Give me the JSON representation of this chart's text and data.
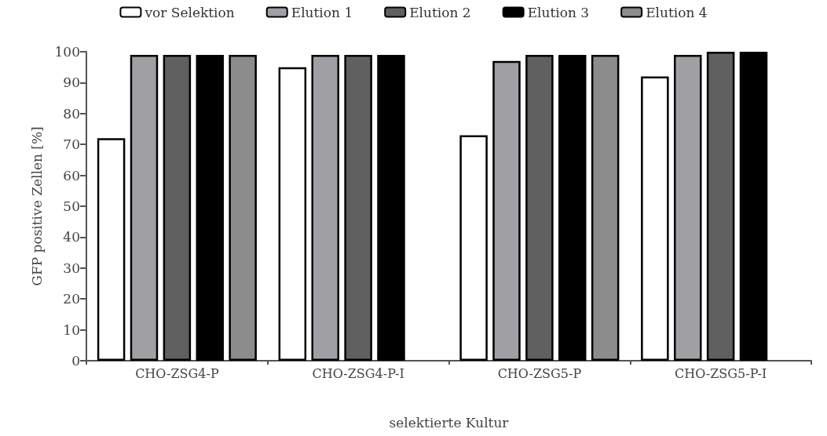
{
  "chart_data": {
    "type": "bar",
    "xlabel": "selektierte Kultur",
    "ylabel": "GFP positive Zellen [%]",
    "categories": [
      "CHO-ZSG4-P",
      "CHO-ZSG4-P-I",
      "CHO-ZSG5-P",
      "CHO-ZSG5-P-I"
    ],
    "series": [
      {
        "name": "vor Selektion",
        "color": "#ffffff",
        "values": [
          72,
          95,
          73,
          92
        ]
      },
      {
        "name": "Elution 1",
        "color": "#a0a0a4",
        "values": [
          99,
          99,
          97,
          99
        ]
      },
      {
        "name": "Elution 2",
        "color": "#606060",
        "values": [
          99,
          99,
          99,
          100
        ]
      },
      {
        "name": "Elution 3",
        "color": "#000000",
        "values": [
          99,
          99,
          99,
          100
        ]
      },
      {
        "name": "Elution 4",
        "color": "#8c8c8c",
        "values": [
          99,
          null,
          99,
          null
        ]
      }
    ],
    "ylim": [
      0,
      100
    ],
    "yticks": [
      0,
      10,
      20,
      30,
      40,
      50,
      60,
      70,
      80,
      90,
      100
    ],
    "grid": false,
    "legend": "top"
  }
}
